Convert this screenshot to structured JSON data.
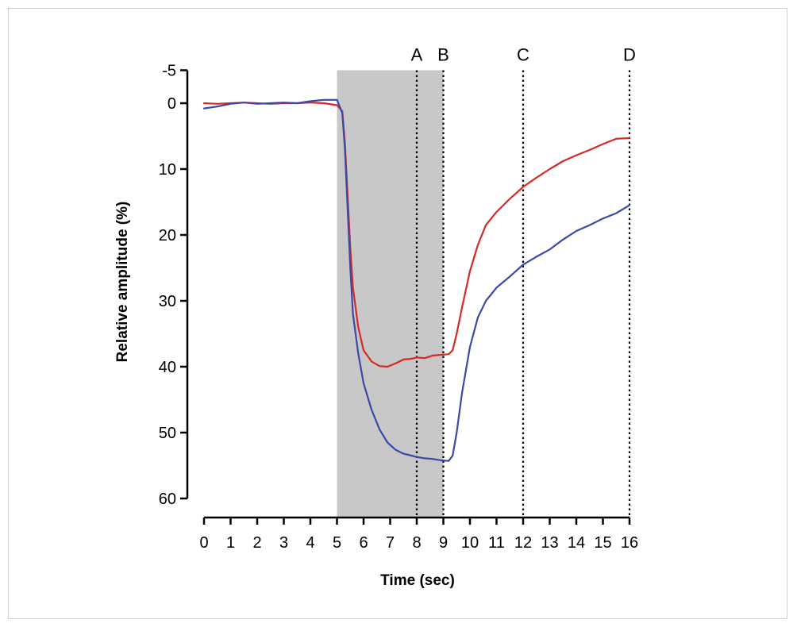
{
  "chart_data": {
    "type": "line",
    "title": "",
    "xlabel": "Time (sec)",
    "ylabel": "Relative amplitude (%)",
    "xlim": [
      0,
      16
    ],
    "ylim": [
      -5,
      60
    ],
    "y_inverted": true,
    "x_ticks": [
      0,
      1,
      2,
      3,
      4,
      5,
      6,
      7,
      8,
      9,
      10,
      11,
      12,
      13,
      14,
      15,
      16
    ],
    "x_tick_labels": [
      "0",
      "1",
      "2",
      "3",
      "4",
      "5",
      "6",
      "7",
      "8",
      "9",
      "10",
      "11",
      "12",
      "13",
      "14",
      "15",
      "16"
    ],
    "y_ticks": [
      -5,
      0,
      10,
      20,
      30,
      40,
      50,
      60
    ],
    "y_tick_labels": [
      "-5",
      "0",
      "10",
      "20",
      "30",
      "40",
      "50",
      "60"
    ],
    "grid": false,
    "shaded_region": {
      "x_start": 5,
      "x_end": 9,
      "color": "#c8c8c8"
    },
    "markers": [
      {
        "label": "A",
        "x": 8
      },
      {
        "label": "B",
        "x": 9
      },
      {
        "label": "C",
        "x": 12
      },
      {
        "label": "D",
        "x": 16
      }
    ],
    "series": [
      {
        "color": "#d62a23",
        "x": [
          0,
          0.5,
          1,
          1.5,
          2,
          2.5,
          3,
          3.5,
          4,
          4.5,
          5,
          5.2,
          5.3,
          5.4,
          5.5,
          5.6,
          5.8,
          6,
          6.3,
          6.6,
          6.9,
          7.2,
          7.5,
          7.8,
          8,
          8.3,
          8.6,
          8.9,
          9.2,
          9.35,
          9.5,
          9.7,
          10,
          10.3,
          10.6,
          11,
          11.5,
          12,
          12.5,
          13,
          13.5,
          14,
          14.5,
          15,
          15.5,
          16
        ],
        "y": [
          0,
          0.1,
          0,
          -0.1,
          0,
          0.1,
          0,
          0,
          -0.1,
          0,
          0.3,
          1.2,
          6,
          14,
          22,
          28,
          34,
          37.5,
          39.2,
          39.9,
          40,
          39.5,
          38.9,
          38.8,
          38.6,
          38.7,
          38.3,
          38.2,
          38.1,
          37.5,
          35,
          31,
          25.5,
          21.5,
          18.5,
          16.5,
          14.5,
          12.7,
          11.3,
          10,
          8.8,
          7.9,
          7.1,
          6.2,
          5.4,
          5.3
        ]
      },
      {
        "color": "#3a49a8",
        "x": [
          0,
          0.5,
          1,
          1.5,
          2,
          2.5,
          3,
          3.5,
          4,
          4.5,
          5,
          5.2,
          5.3,
          5.4,
          5.5,
          5.6,
          5.8,
          6,
          6.3,
          6.6,
          6.9,
          7.2,
          7.5,
          7.8,
          8,
          8.3,
          8.6,
          8.9,
          9.2,
          9.35,
          9.5,
          9.7,
          10,
          10.3,
          10.6,
          11,
          11.5,
          12,
          12.5,
          13,
          13.5,
          14,
          14.5,
          15,
          15.5,
          16
        ],
        "y": [
          0.8,
          0.5,
          0.1,
          -0.1,
          0.1,
          0,
          -0.1,
          0,
          -0.3,
          -0.5,
          -0.5,
          1.5,
          7,
          16,
          25,
          32,
          38,
          42.5,
          46.5,
          49.5,
          51.5,
          52.6,
          53.2,
          53.5,
          53.7,
          53.9,
          54,
          54.2,
          54.3,
          53.5,
          50,
          44,
          37,
          32.5,
          30,
          28,
          26.3,
          24.5,
          23.3,
          22.2,
          20.7,
          19.4,
          18.5,
          17.5,
          16.7,
          15.5
        ]
      }
    ]
  }
}
